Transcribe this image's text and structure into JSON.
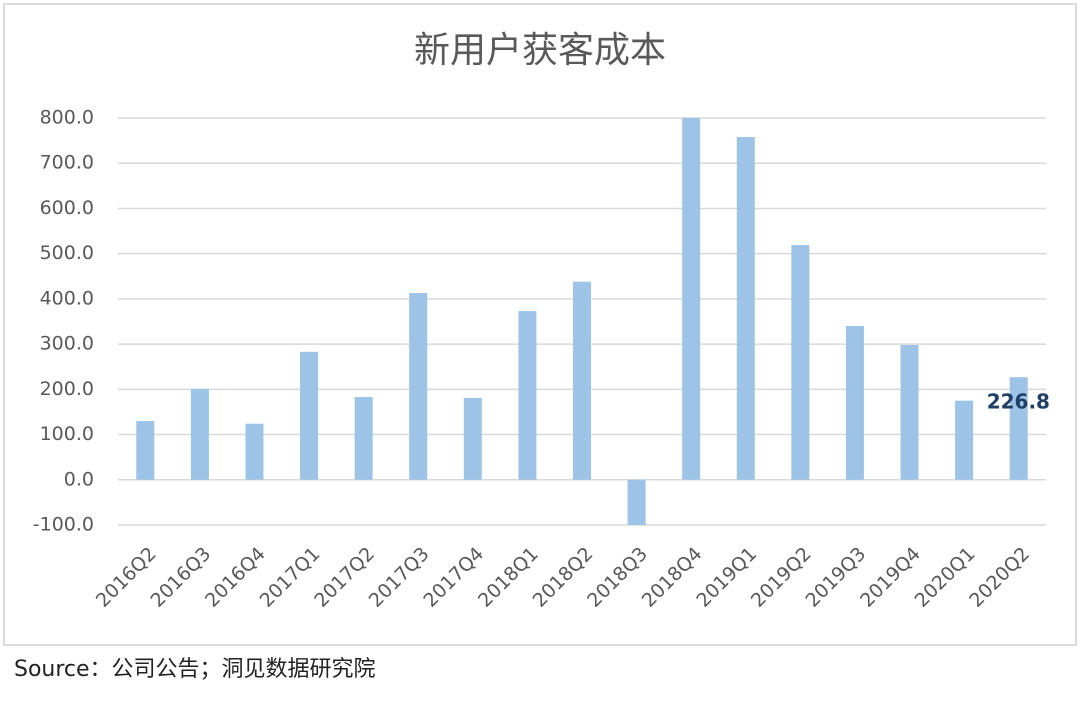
{
  "chart_data": {
    "type": "bar",
    "title": "新用户获客成本",
    "categories": [
      "2016Q2",
      "2016Q3",
      "2016Q4",
      "2017Q1",
      "2017Q2",
      "2017Q3",
      "2017Q4",
      "2018Q1",
      "2018Q2",
      "2018Q3",
      "2018Q4",
      "2019Q1",
      "2019Q2",
      "2019Q3",
      "2019Q4",
      "2020Q1",
      "2020Q2"
    ],
    "values": [
      130,
      201,
      124,
      283,
      183,
      413,
      181,
      373,
      438,
      -100,
      800,
      758,
      519,
      340,
      298,
      175,
      226.8
    ],
    "value_labels": [
      null,
      null,
      null,
      null,
      null,
      null,
      null,
      null,
      null,
      null,
      null,
      null,
      null,
      null,
      null,
      null,
      "226.8"
    ],
    "color": "#9dc3e6",
    "ylim": [
      -100,
      800
    ],
    "yticks": [
      {
        "value": -100,
        "label": "-100.0"
      },
      {
        "value": 0,
        "label": "0.0"
      },
      {
        "value": 100,
        "label": "100.0"
      },
      {
        "value": 200,
        "label": "200.0"
      },
      {
        "value": 300,
        "label": "300.0"
      },
      {
        "value": 400,
        "label": "400.0"
      },
      {
        "value": 500,
        "label": "500.0"
      },
      {
        "value": 600,
        "label": "600.0"
      },
      {
        "value": 700,
        "label": "700.0"
      },
      {
        "value": 800,
        "label": "800.0"
      }
    ],
    "grid": true,
    "source": "Source：公司公告；洞见数据研究院"
  }
}
